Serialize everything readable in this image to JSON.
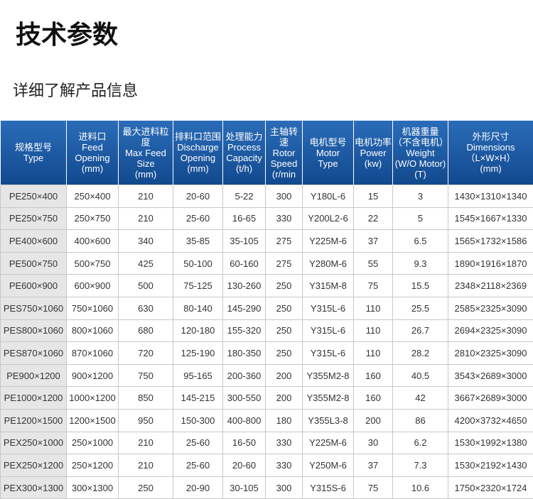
{
  "header": {
    "title": "技术参数",
    "subtitle": "详细了解产品信息"
  },
  "table": {
    "columns": [
      [
        "规格型号",
        "Type"
      ],
      [
        "进料口",
        "Feed",
        "Opening",
        "(mm)"
      ],
      [
        "最大进料粒度",
        "Max Feed",
        "Size",
        "(mm)"
      ],
      [
        "排料口范围",
        "Discharge",
        "Opening",
        "(mm)"
      ],
      [
        "处理能力",
        "Process",
        "Capacity",
        "(t/h)"
      ],
      [
        "主轴转速",
        "Rotor",
        "Speed",
        "(r/min"
      ],
      [
        "电机型号",
        "Motor",
        "Type"
      ],
      [
        "电机功率",
        "Power",
        "(kw)"
      ],
      [
        "机器重量",
        "（不含电机）",
        "Weight",
        "(W/O Motor)",
        "(T)"
      ],
      [
        "外形尺寸",
        "Dimensions",
        "（L×W×H）",
        "(mm)"
      ]
    ],
    "rows": [
      [
        "PE250×400",
        "250×400",
        "210",
        "20-60",
        "5-22",
        "300",
        "Y180L-6",
        "15",
        "3",
        "1430×1310×1340"
      ],
      [
        "PE250×750",
        "250×750",
        "210",
        "25-60",
        "16-65",
        "330",
        "Y200L2-6",
        "22",
        "5",
        "1545×1667×1330"
      ],
      [
        "PE400×600",
        "400×600",
        "340",
        "35-85",
        "35-105",
        "275",
        "Y225M-6",
        "37",
        "6.5",
        "1565×1732×1586"
      ],
      [
        "PE500×750",
        "500×750",
        "425",
        "50-100",
        "60-160",
        "275",
        "Y280M-6",
        "55",
        "9.3",
        "1890×1916×1870"
      ],
      [
        "PE600×900",
        "600×900",
        "500",
        "75-125",
        "130-260",
        "250",
        "Y315M-8",
        "75",
        "15.5",
        "2348×2118×2369"
      ],
      [
        "PES750×1060",
        "750×1060",
        "630",
        "80-140",
        "145-290",
        "250",
        "Y315L-6",
        "110",
        "25.5",
        "2585×2325×3090"
      ],
      [
        "PES800×1060",
        "800×1060",
        "680",
        "120-180",
        "155-320",
        "250",
        "Y315L-6",
        "110",
        "26.7",
        "2694×2325×3090"
      ],
      [
        "PES870×1060",
        "870×1060",
        "720",
        "125-190",
        "180-350",
        "250",
        "Y315L-6",
        "110",
        "28.2",
        "2810×2325×3090"
      ],
      [
        "PE900×1200",
        "900×1200",
        "750",
        "95-165",
        "200-360",
        "200",
        "Y355M2-8",
        "160",
        "40.5",
        "3543×2689×3000"
      ],
      [
        "PE1000×1200",
        "1000×1200",
        "850",
        "145-215",
        "300-550",
        "200",
        "Y355M2-8",
        "160",
        "42",
        "3667×2689×3000"
      ],
      [
        "PE1200×1500",
        "1200×1500",
        "950",
        "150-300",
        "400-800",
        "180",
        "Y355L3-8",
        "200",
        "86",
        "4200×3732×4650"
      ],
      [
        "PEX250×1000",
        "250×1000",
        "210",
        "25-60",
        "16-50",
        "330",
        "Y225M-6",
        "30",
        "6.2",
        "1530×1992×1380"
      ],
      [
        "PEX250×1200",
        "250×1200",
        "210",
        "25-60",
        "20-60",
        "330",
        "Y250M-6",
        "37",
        "7.3",
        "1530×2192×1430"
      ],
      [
        "PEX300×1300",
        "300×1300",
        "250",
        "20-90",
        "30-105",
        "300",
        "Y315S-6",
        "75",
        "10.6",
        "1750×2320×1724"
      ]
    ]
  }
}
